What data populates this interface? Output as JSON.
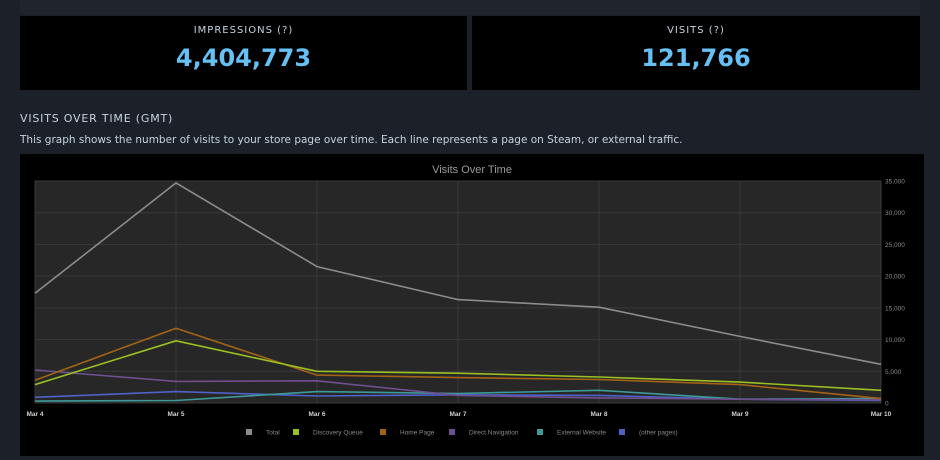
{
  "stats": {
    "impressions": {
      "label": "IMPRESSIONS (?)",
      "value": "4,404,773"
    },
    "visits": {
      "label": "VISITS (?)",
      "value": "121,766"
    }
  },
  "section": {
    "title": "VISITS OVER TIME (GMT)",
    "description": "This graph shows the number of visits to your store page over time. Each line represents a page on Steam, or external traffic."
  },
  "colors": {
    "accent": "#66c0f4",
    "background": "#1b2029",
    "panel": "#000000",
    "plot": "#272727"
  },
  "chart_data": {
    "type": "line",
    "title": "Visits Over Time",
    "x": [
      "Mar 4",
      "Mar 5",
      "Mar 6",
      "Mar 7",
      "Mar 8",
      "Mar 9",
      "Mar 10"
    ],
    "ylim": [
      0,
      35000
    ],
    "yticks": [
      0,
      5000,
      10000,
      15000,
      20000,
      25000,
      30000,
      35000
    ],
    "ytick_labels": [
      "0",
      "5,000",
      "10,000",
      "15,000",
      "20,000",
      "25,000",
      "30,000",
      "35,000"
    ],
    "grid": true,
    "legend_position": "bottom",
    "series": [
      {
        "name": "Total",
        "color": "#8c8c8c",
        "values": [
          17300,
          34700,
          21500,
          16300,
          15100,
          10500,
          6100
        ]
      },
      {
        "name": "Discovery Queue",
        "color": "#9ac022",
        "values": [
          2900,
          9800,
          5000,
          4700,
          4100,
          3300,
          2000
        ]
      },
      {
        "name": "Home Page",
        "color": "#a26316",
        "values": [
          3600,
          11800,
          4400,
          4000,
          3700,
          2900,
          700
        ]
      },
      {
        "name": "Direct Navigation",
        "color": "#6e4f8f",
        "values": [
          5200,
          3400,
          3500,
          1200,
          800,
          600,
          500
        ]
      },
      {
        "name": "External Website",
        "color": "#3e9a9a",
        "values": [
          300,
          400,
          1800,
          1500,
          2000,
          600,
          700
        ]
      },
      {
        "name": "(other pages)",
        "color": "#4f62c8",
        "values": [
          900,
          1800,
          1100,
          1300,
          1200,
          600,
          400
        ]
      }
    ]
  }
}
